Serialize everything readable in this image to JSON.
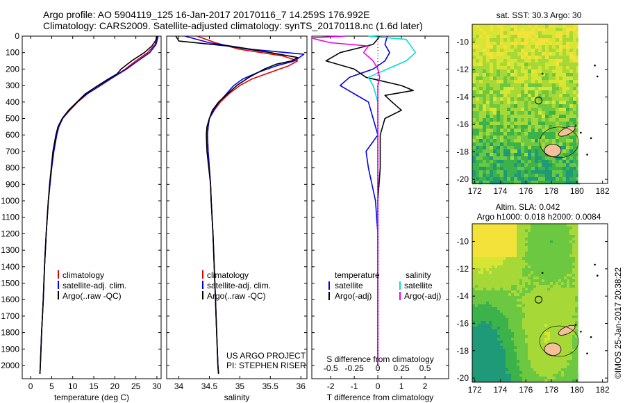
{
  "header": {
    "line1": "Argo profile: AO 5904119_125 16-Jan-2017 20170116_7 14.259S 176.992E",
    "line2": "Climatology: CARS2009. Satellite-adjusted climatology: synTS_20170118.nc (1.6d later)"
  },
  "colors": {
    "climatology": "#dd0000",
    "satellite": "#0000ee",
    "argo": "#000000",
    "sal_satellite": "#00dddd",
    "sal_argo": "#ee00ee",
    "land": "#f4c09a"
  },
  "chart_data": [
    {
      "type": "line",
      "xlabel": "temperature (deg C)",
      "ylabel": "",
      "xlim": [
        -2,
        31
      ],
      "ylim": [
        2080,
        0
      ],
      "xticks": [
        0,
        5,
        10,
        15,
        20,
        25,
        30
      ],
      "yticks": [
        0,
        100,
        200,
        300,
        400,
        500,
        600,
        700,
        800,
        900,
        1000,
        1100,
        1200,
        1300,
        1400,
        1500,
        1600,
        1700,
        1800,
        1900,
        2000
      ],
      "legend": [
        "climatology",
        "satellite-adj. clim.",
        "Argo(..raw -QC)"
      ],
      "legend_position": "lower-center",
      "series": [
        {
          "name": "climatology",
          "y": [
            0,
            50,
            100,
            150,
            200,
            250,
            300,
            350,
            400,
            450,
            500,
            550,
            600,
            700,
            800,
            900,
            1000,
            1200,
            1400,
            1600,
            1800,
            2000,
            2050
          ],
          "x": [
            29.9,
            29.6,
            27.8,
            25.0,
            22.5,
            19.5,
            16.5,
            13.5,
            11.2,
            9.3,
            7.6,
            6.7,
            6.2,
            5.5,
            5.0,
            4.6,
            4.2,
            3.7,
            3.3,
            3.0,
            2.6,
            2.3,
            2.2
          ]
        },
        {
          "name": "satellite-adj. clim.",
          "y": [
            0,
            50,
            100,
            150,
            200,
            250,
            300,
            350,
            400,
            450,
            500,
            550,
            600,
            700,
            800,
            900,
            1000,
            1200,
            1400,
            1600,
            1800,
            2000,
            2050
          ],
          "x": [
            30.3,
            29.8,
            28.3,
            25.5,
            22.8,
            19.6,
            16.6,
            13.4,
            11.1,
            9.2,
            7.6,
            6.7,
            6.2,
            5.5,
            5.0,
            4.6,
            4.2,
            3.7,
            3.3,
            3.0,
            2.6,
            2.3,
            2.2
          ]
        },
        {
          "name": "Argo(..raw -QC)",
          "y": [
            0,
            20,
            60,
            100,
            150,
            200,
            230,
            260,
            300,
            350,
            400,
            450,
            500,
            550,
            600,
            700,
            800,
            900,
            1000,
            1200,
            1400,
            1600,
            1800,
            2000,
            2050
          ],
          "x": [
            30.0,
            29.9,
            28.8,
            27.0,
            24.0,
            21.5,
            20.5,
            18.5,
            16.0,
            13.0,
            11.0,
            9.0,
            7.5,
            6.5,
            6.0,
            5.3,
            4.9,
            4.5,
            4.2,
            3.7,
            3.3,
            3.0,
            2.6,
            2.3,
            2.2
          ]
        }
      ]
    },
    {
      "type": "line",
      "xlabel": "salinity",
      "ylabel": "",
      "xlim": [
        33.8,
        36.1
      ],
      "ylim": [
        2080,
        0
      ],
      "xticks": [
        34,
        34.5,
        35,
        35.5,
        36
      ],
      "legend": [
        "climatology",
        "satellite-adj. clim.",
        "Argo(..raw -QC)"
      ],
      "legend_position": "lower-center",
      "annotations": [
        "US ARGO PROJECT",
        "PI: STEPHEN RISER"
      ],
      "series": [
        {
          "name": "climatology",
          "y": [
            0,
            40,
            80,
            120,
            150,
            180,
            220,
            260,
            300,
            350,
            400,
            450,
            500,
            550,
            600,
            700,
            800,
            900,
            1000,
            1200,
            1400,
            1600,
            1800,
            2000,
            2050
          ],
          "x": [
            34.3,
            34.6,
            35.0,
            35.7,
            35.95,
            35.8,
            35.5,
            35.2,
            35.0,
            34.82,
            34.68,
            34.58,
            34.5,
            34.48,
            34.47,
            34.48,
            34.5,
            34.52,
            34.53,
            34.56,
            34.58,
            34.6,
            34.62,
            34.64,
            34.65
          ]
        },
        {
          "name": "satellite-adj. clim.",
          "y": [
            0,
            40,
            80,
            110,
            150,
            180,
            220,
            260,
            300,
            350,
            400,
            450,
            500,
            550,
            600,
            700,
            800,
            900,
            1000,
            1200,
            1400,
            1600,
            1800,
            2000,
            2050
          ],
          "x": [
            34.1,
            34.5,
            35.2,
            36.05,
            35.9,
            35.6,
            35.3,
            35.05,
            34.9,
            34.78,
            34.66,
            34.57,
            34.5,
            34.48,
            34.47,
            34.48,
            34.5,
            34.52,
            34.53,
            34.56,
            34.58,
            34.6,
            34.62,
            34.64,
            34.65
          ]
        },
        {
          "name": "Argo(..raw -QC)",
          "y": [
            0,
            30,
            60,
            100,
            130,
            150,
            170,
            200,
            250,
            300,
            350,
            400,
            450,
            500,
            550,
            600,
            700,
            800,
            900,
            1000,
            1200,
            1400,
            1600,
            1800,
            2000,
            2050
          ],
          "x": [
            33.95,
            34.0,
            34.8,
            35.5,
            35.95,
            35.85,
            35.6,
            35.4,
            35.15,
            34.95,
            34.8,
            34.65,
            34.55,
            34.5,
            34.46,
            34.45,
            34.46,
            34.49,
            34.52,
            34.53,
            34.56,
            34.58,
            34.6,
            34.62,
            34.64,
            34.65
          ]
        }
      ]
    },
    {
      "type": "line",
      "xlabel": "T difference from climatology",
      "xlabel2": "S difference from climatology",
      "xlim": [
        -2.8,
        3.0
      ],
      "xlim_S": [
        -0.7,
        0.75
      ],
      "ylim": [
        2080,
        0
      ],
      "xticks": [
        -2,
        -1,
        0,
        1,
        2
      ],
      "xticks_S": [
        -0.5,
        -0.25,
        0,
        0.25,
        0.5
      ],
      "legend_temperature": [
        "temperature",
        "satellite",
        "Argo(-adj)"
      ],
      "legend_salinity": [
        "salinity",
        "satellite",
        "Argo(-adj)"
      ],
      "series": [
        {
          "name": "satellite",
          "variable": "T",
          "y": [
            0,
            50,
            100,
            150,
            200,
            250,
            300,
            350,
            400,
            450,
            500,
            600,
            700,
            800,
            1000,
            1200,
            1500,
            2000
          ],
          "x": [
            0.4,
            0.3,
            0.5,
            0.3,
            -0.2,
            -1.2,
            -1.6,
            -1.0,
            -0.4,
            -0.3,
            -0.2,
            0.0,
            -0.5,
            -0.4,
            -0.1,
            0.0,
            0.0,
            0.0
          ]
        },
        {
          "name": "Argo(-adj)",
          "variable": "T",
          "y": [
            0,
            50,
            100,
            150,
            200,
            250,
            300,
            330,
            360,
            400,
            450,
            500,
            600,
            700,
            800,
            1000,
            1200,
            1500,
            2000
          ],
          "x": [
            0.1,
            -0.2,
            -1.6,
            -2.2,
            -1.0,
            -0.5,
            1.0,
            1.5,
            0.3,
            0.6,
            1.0,
            0.3,
            0.1,
            0.1,
            0.1,
            0.0,
            0.0,
            0.0,
            0.0
          ]
        },
        {
          "name": "satellite",
          "variable": "S",
          "y": [
            0,
            20,
            60,
            100,
            150,
            200,
            250,
            300,
            400,
            500,
            600,
            800,
            1000,
            1500,
            2000
          ],
          "x": [
            -0.1,
            0.3,
            0.35,
            0.4,
            0.3,
            0.1,
            -0.1,
            -0.05,
            0.0,
            0.0,
            0.0,
            0.0,
            0.0,
            0.0,
            0.0
          ]
        },
        {
          "name": "Argo(-adj)",
          "variable": "S",
          "y": [
            0,
            10,
            20,
            40,
            60,
            100,
            150,
            200,
            250,
            300,
            400,
            500,
            600,
            800,
            1000,
            1500,
            2000
          ],
          "x": [
            -0.35,
            -0.7,
            -0.65,
            -0.5,
            -0.1,
            -0.15,
            -0.05,
            0.0,
            0.02,
            0.0,
            0.0,
            0.0,
            0.0,
            0.0,
            0.0,
            0.0,
            0.0
          ]
        }
      ]
    },
    {
      "type": "heatmap",
      "title": "sat. SST: 30.3 Argo: 30",
      "xticks": [
        172,
        174,
        176,
        178,
        180,
        182
      ],
      "yticks": [
        -10,
        -12,
        -14,
        -16,
        -18,
        -20
      ],
      "xlim": [
        171.8,
        182.4
      ],
      "ylim": [
        -20.3,
        -8.7
      ],
      "marker": {
        "lon": 176.992,
        "lat": -14.259
      }
    },
    {
      "type": "heatmap",
      "title": "Altim. SLA: 0.042",
      "subtitle": "Argo h1000: 0.018 h2000: 0.0084",
      "xticks": [
        172,
        174,
        176,
        178,
        180,
        182
      ],
      "yticks": [
        -10,
        -12,
        -14,
        -16,
        -18,
        -20
      ],
      "xlim": [
        171.8,
        182.4
      ],
      "ylim": [
        -20.3,
        -8.7
      ],
      "marker": {
        "lon": 176.992,
        "lat": -14.259
      }
    }
  ],
  "footer": {
    "stamp": "©IMOS 25-Jan-2017 20:38:22"
  }
}
